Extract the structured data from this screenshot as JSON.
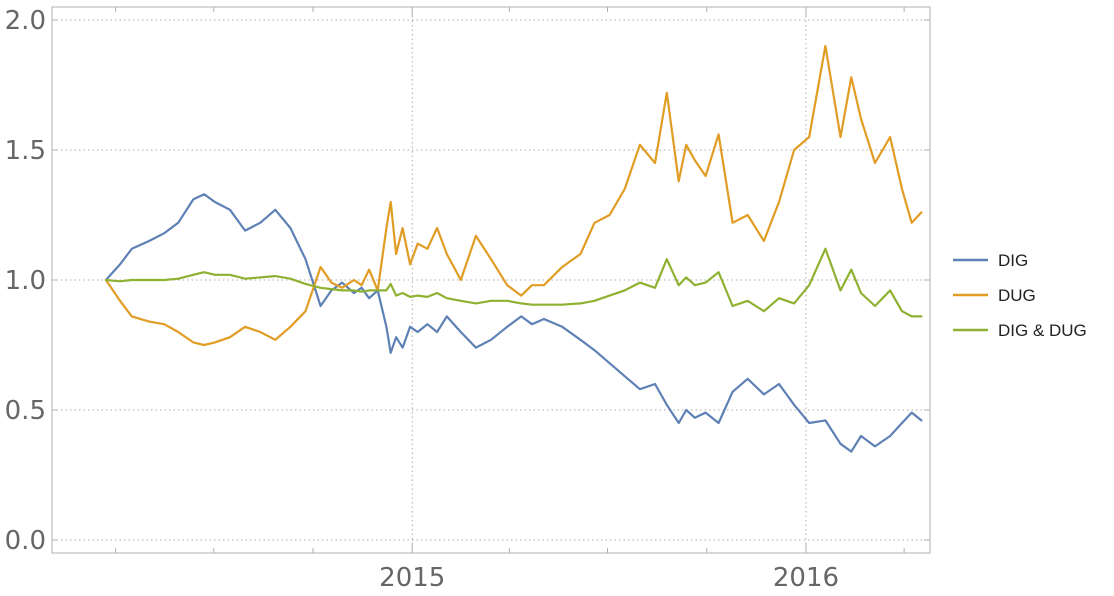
{
  "chart_data": {
    "type": "line",
    "title": "",
    "xlabel": "",
    "ylabel": "",
    "x_range": [
      "2014-02-01",
      "2016-04-25"
    ],
    "ylim": [
      -0.05,
      2.05
    ],
    "grid": true,
    "legend_position": "right",
    "x_ticks": [
      {
        "date": "2015-01-01",
        "label": "2015"
      },
      {
        "date": "2016-01-01",
        "label": "2016"
      }
    ],
    "x_minor_ticks": [
      "2014-04-01",
      "2014-07-01",
      "2014-10-01",
      "2015-04-01",
      "2015-07-01",
      "2015-10-01",
      "2016-04-01"
    ],
    "y_ticks": [
      {
        "value": 0.0,
        "label": "0.0"
      },
      {
        "value": 0.5,
        "label": "0.5"
      },
      {
        "value": 1.0,
        "label": "1.0"
      },
      {
        "value": 1.5,
        "label": "1.5"
      },
      {
        "value": 2.0,
        "label": "2.0"
      }
    ],
    "series": [
      {
        "name": "DIG",
        "color": "#5e81b5",
        "x": [
          "2014-03-23",
          "2014-04-05",
          "2014-04-16",
          "2014-05-02",
          "2014-05-16",
          "2014-05-29",
          "2014-06-12",
          "2014-06-22",
          "2014-07-02",
          "2014-07-16",
          "2014-07-30",
          "2014-08-13",
          "2014-08-27",
          "2014-09-10",
          "2014-09-24",
          "2014-10-08",
          "2014-10-18",
          "2014-10-28",
          "2014-11-08",
          "2014-11-15",
          "2014-11-22",
          "2014-11-30",
          "2014-12-08",
          "2014-12-12",
          "2014-12-17",
          "2014-12-23",
          "2014-12-30",
          "2015-01-06",
          "2015-01-15",
          "2015-01-24",
          "2015-02-02",
          "2015-02-15",
          "2015-03-01",
          "2015-03-15",
          "2015-03-30",
          "2015-04-12",
          "2015-04-22",
          "2015-05-03",
          "2015-05-20",
          "2015-06-06",
          "2015-06-19",
          "2015-07-03",
          "2015-07-17",
          "2015-07-31",
          "2015-08-14",
          "2015-08-25",
          "2015-09-05",
          "2015-09-12",
          "2015-09-20",
          "2015-09-30",
          "2015-10-12",
          "2015-10-25",
          "2015-11-08",
          "2015-11-23",
          "2015-12-07",
          "2015-12-21",
          "2016-01-04",
          "2016-01-19",
          "2016-02-02",
          "2016-02-12",
          "2016-02-21",
          "2016-03-05",
          "2016-03-19",
          "2016-03-30",
          "2016-04-08",
          "2016-04-17"
        ],
        "values": [
          1.0,
          1.06,
          1.12,
          1.15,
          1.18,
          1.22,
          1.31,
          1.33,
          1.3,
          1.27,
          1.19,
          1.22,
          1.27,
          1.2,
          1.08,
          0.9,
          0.96,
          0.99,
          0.95,
          0.97,
          0.93,
          0.96,
          0.82,
          0.72,
          0.78,
          0.74,
          0.82,
          0.8,
          0.83,
          0.8,
          0.86,
          0.8,
          0.74,
          0.77,
          0.82,
          0.86,
          0.83,
          0.85,
          0.82,
          0.77,
          0.73,
          0.68,
          0.63,
          0.58,
          0.6,
          0.52,
          0.45,
          0.5,
          0.47,
          0.49,
          0.45,
          0.57,
          0.62,
          0.56,
          0.6,
          0.52,
          0.45,
          0.46,
          0.37,
          0.34,
          0.4,
          0.36,
          0.4,
          0.45,
          0.49,
          0.46
        ]
      },
      {
        "name": "DUG",
        "color": "#e19c24",
        "x": [
          "2014-03-23",
          "2014-04-05",
          "2014-04-16",
          "2014-05-02",
          "2014-05-16",
          "2014-05-29",
          "2014-06-12",
          "2014-06-22",
          "2014-07-02",
          "2014-07-16",
          "2014-07-30",
          "2014-08-13",
          "2014-08-27",
          "2014-09-10",
          "2014-09-24",
          "2014-10-08",
          "2014-10-18",
          "2014-10-28",
          "2014-11-08",
          "2014-11-15",
          "2014-11-22",
          "2014-11-30",
          "2014-12-08",
          "2014-12-12",
          "2014-12-17",
          "2014-12-23",
          "2014-12-30",
          "2015-01-06",
          "2015-01-15",
          "2015-01-24",
          "2015-02-02",
          "2015-02-15",
          "2015-03-01",
          "2015-03-15",
          "2015-03-30",
          "2015-04-12",
          "2015-04-22",
          "2015-05-03",
          "2015-05-20",
          "2015-06-06",
          "2015-06-19",
          "2015-07-03",
          "2015-07-17",
          "2015-07-31",
          "2015-08-14",
          "2015-08-25",
          "2015-09-05",
          "2015-09-12",
          "2015-09-20",
          "2015-09-30",
          "2015-10-12",
          "2015-10-25",
          "2015-11-08",
          "2015-11-23",
          "2015-12-07",
          "2015-12-21",
          "2016-01-04",
          "2016-01-19",
          "2016-02-02",
          "2016-02-12",
          "2016-02-21",
          "2016-03-05",
          "2016-03-19",
          "2016-03-30",
          "2016-04-08",
          "2016-04-17"
        ],
        "values": [
          1.0,
          0.92,
          0.86,
          0.84,
          0.83,
          0.8,
          0.76,
          0.75,
          0.76,
          0.78,
          0.82,
          0.8,
          0.77,
          0.82,
          0.88,
          1.05,
          0.99,
          0.97,
          1.0,
          0.98,
          1.04,
          0.96,
          1.2,
          1.3,
          1.1,
          1.2,
          1.06,
          1.14,
          1.12,
          1.2,
          1.1,
          1.0,
          1.17,
          1.08,
          0.98,
          0.94,
          0.98,
          0.98,
          1.05,
          1.1,
          1.22,
          1.25,
          1.35,
          1.52,
          1.45,
          1.72,
          1.38,
          1.52,
          1.46,
          1.4,
          1.56,
          1.22,
          1.25,
          1.15,
          1.3,
          1.5,
          1.55,
          1.9,
          1.55,
          1.78,
          1.62,
          1.45,
          1.55,
          1.35,
          1.22,
          1.26
        ]
      },
      {
        "name": "DIG & DUG",
        "color": "#8fb131",
        "x": [
          "2014-03-23",
          "2014-04-05",
          "2014-04-16",
          "2014-05-02",
          "2014-05-16",
          "2014-05-29",
          "2014-06-12",
          "2014-06-22",
          "2014-07-02",
          "2014-07-16",
          "2014-07-30",
          "2014-08-13",
          "2014-08-27",
          "2014-09-10",
          "2014-09-24",
          "2014-10-08",
          "2014-10-18",
          "2014-10-28",
          "2014-11-08",
          "2014-11-15",
          "2014-11-22",
          "2014-11-30",
          "2014-12-08",
          "2014-12-12",
          "2014-12-17",
          "2014-12-23",
          "2014-12-30",
          "2015-01-06",
          "2015-01-15",
          "2015-01-24",
          "2015-02-02",
          "2015-02-15",
          "2015-03-01",
          "2015-03-15",
          "2015-03-30",
          "2015-04-12",
          "2015-04-22",
          "2015-05-03",
          "2015-05-20",
          "2015-06-06",
          "2015-06-19",
          "2015-07-03",
          "2015-07-17",
          "2015-07-31",
          "2015-08-14",
          "2015-08-25",
          "2015-09-05",
          "2015-09-12",
          "2015-09-20",
          "2015-09-30",
          "2015-10-12",
          "2015-10-25",
          "2015-11-08",
          "2015-11-23",
          "2015-12-07",
          "2015-12-21",
          "2016-01-04",
          "2016-01-19",
          "2016-02-02",
          "2016-02-12",
          "2016-02-21",
          "2016-03-05",
          "2016-03-19",
          "2016-03-30",
          "2016-04-08",
          "2016-04-17"
        ],
        "values": [
          1.0,
          0.995,
          1.0,
          1.0,
          1.0,
          1.005,
          1.02,
          1.03,
          1.02,
          1.02,
          1.005,
          1.01,
          1.015,
          1.005,
          0.985,
          0.97,
          0.965,
          0.96,
          0.96,
          0.955,
          0.96,
          0.96,
          0.96,
          0.985,
          0.94,
          0.95,
          0.935,
          0.94,
          0.935,
          0.95,
          0.93,
          0.92,
          0.91,
          0.92,
          0.92,
          0.91,
          0.905,
          0.905,
          0.905,
          0.91,
          0.92,
          0.94,
          0.96,
          0.99,
          0.97,
          1.08,
          0.98,
          1.01,
          0.98,
          0.99,
          1.03,
          0.9,
          0.92,
          0.88,
          0.93,
          0.91,
          0.98,
          1.12,
          0.96,
          1.04,
          0.95,
          0.9,
          0.96,
          0.88,
          0.86,
          0.86
        ]
      }
    ]
  }
}
